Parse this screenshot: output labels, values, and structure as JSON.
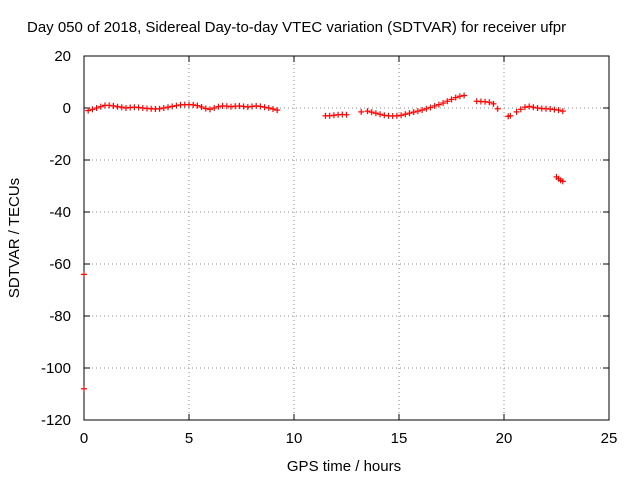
{
  "chart_data": {
    "type": "scatter",
    "title": "Day 050 of 2018, Sidereal Day-to-day VTEC variation (SDTVAR) for receiver ufpr",
    "xlabel": "GPS time / hours",
    "ylabel": "SDTVAR / TECUs",
    "xlim": [
      0,
      25
    ],
    "ylim": [
      -120,
      20
    ],
    "xticks": [
      0,
      5,
      10,
      15,
      20,
      25
    ],
    "yticks": [
      20,
      0,
      -20,
      -40,
      -60,
      -80,
      -100,
      -120
    ],
    "grid": true,
    "marker": "+",
    "series": [
      {
        "color": "#ff0000",
        "x": [
          0.0,
          0.0,
          0.2,
          0.4,
          0.6,
          0.8,
          1.0,
          1.2,
          1.4,
          1.6,
          1.8,
          2.0,
          2.2,
          2.4,
          2.6,
          2.8,
          3.0,
          3.2,
          3.4,
          3.6,
          3.8,
          4.0,
          4.2,
          4.4,
          4.6,
          4.8,
          5.0,
          5.2,
          5.4,
          5.6,
          5.8,
          6.0,
          6.2,
          6.4,
          6.6,
          6.8,
          7.0,
          7.2,
          7.4,
          7.6,
          7.8,
          8.0,
          8.2,
          8.4,
          8.6,
          8.8,
          9.0,
          9.2,
          11.5,
          11.7,
          11.9,
          12.1,
          12.3,
          12.5,
          13.2,
          13.5,
          13.7,
          13.9,
          14.1,
          14.3,
          14.5,
          14.7,
          14.9,
          15.1,
          15.3,
          15.5,
          15.7,
          15.9,
          16.1,
          16.3,
          16.5,
          16.7,
          16.9,
          17.1,
          17.3,
          17.5,
          17.7,
          17.9,
          18.1,
          18.7,
          18.9,
          19.1,
          19.3,
          19.5,
          19.7,
          20.2,
          20.3,
          20.6,
          20.8,
          21.0,
          21.2,
          21.4,
          21.6,
          21.8,
          22.0,
          22.2,
          22.4,
          22.6,
          22.8,
          22.5,
          22.6,
          22.7,
          22.8
        ],
        "y": [
          -64,
          -108,
          -1,
          -0.5,
          0,
          0.5,
          1,
          1,
          0.8,
          0.5,
          0.3,
          0,
          0.2,
          0.3,
          0.2,
          0,
          -0.2,
          -0.3,
          -0.4,
          -0.3,
          0,
          0.3,
          0.6,
          0.9,
          1.2,
          1.3,
          1.3,
          1.2,
          0.9,
          0.4,
          -0.2,
          -0.5,
          0,
          0.5,
          0.8,
          0.7,
          0.5,
          0.7,
          0.8,
          0.6,
          0.4,
          0.6,
          0.8,
          0.6,
          0.3,
          0,
          -0.4,
          -0.8,
          -3,
          -3,
          -2.8,
          -2.6,
          -2.5,
          -2.6,
          -1.5,
          -1.2,
          -1.6,
          -2.0,
          -2.4,
          -2.8,
          -3.0,
          -3.1,
          -3.0,
          -2.8,
          -2.4,
          -2.0,
          -1.6,
          -1.2,
          -0.8,
          -0.3,
          0.2,
          0.8,
          1.3,
          1.9,
          2.6,
          3.3,
          4.0,
          4.5,
          4.8,
          2.6,
          2.5,
          2.4,
          2.2,
          1.6,
          -0.3,
          -3.2,
          -3.0,
          -1.5,
          -0.5,
          0.3,
          0.6,
          0.3,
          0,
          -0.2,
          -0.3,
          -0.4,
          -0.6,
          -0.8,
          -1.2,
          -26.5,
          -27.2,
          -27.8,
          -28.2
        ]
      }
    ]
  }
}
